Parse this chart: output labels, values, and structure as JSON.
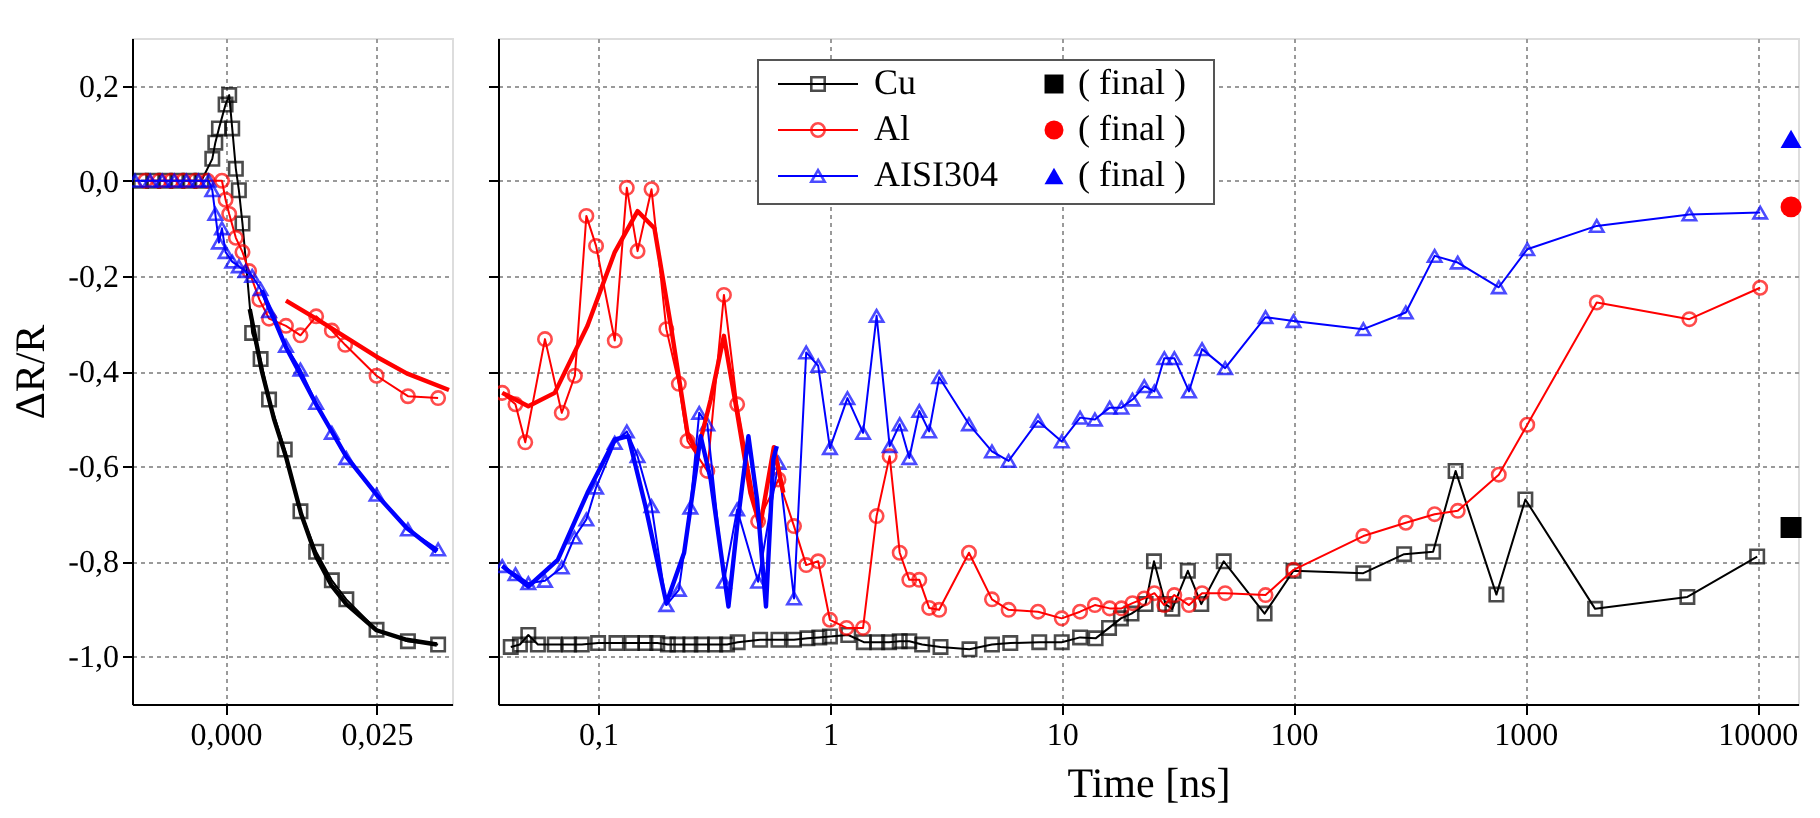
{
  "chart_data": [
    {
      "type": "line",
      "ylabel": "ΔR/R",
      "xlim": [
        -0.0155,
        0.0375
      ],
      "ylim": [
        -1.1,
        0.3
      ],
      "xticks": [
        {
          "value": 0,
          "label": "0,000"
        },
        {
          "value": 0.025,
          "label": "0,025"
        }
      ],
      "yticks": [
        {
          "value": 0.2,
          "label": "0,2"
        },
        {
          "value": 0,
          "label": "0,0"
        },
        {
          "value": -0.2,
          "label": "-0,2"
        },
        {
          "value": -0.4,
          "label": "-0,4"
        },
        {
          "value": -0.6,
          "label": "-0,6"
        },
        {
          "value": -0.8,
          "label": "-0,8"
        },
        {
          "value": -1.0,
          "label": "-1,0"
        }
      ],
      "grid": true,
      "series": [
        {
          "type": "line",
          "color": "#000000",
          "marker": "square",
          "x": [
            -0.014,
            -0.012,
            -0.01,
            -0.008,
            -0.006,
            -0.004,
            -0.0022,
            -0.0017,
            -0.0011,
            0.0,
            0.0006,
            0.0011,
            0.0017,
            0.0022,
            0.0028,
            0.0044,
            0.0058,
            0.0072,
            0.0098,
            0.0124,
            0.015,
            0.0176,
            0.02,
            0.025,
            0.0302,
            0.0352
          ],
          "values": [
            0.0,
            0.0,
            0.0,
            0.0,
            0.0,
            0.0,
            0.046,
            0.08,
            0.11,
            0.16,
            0.18,
            0.11,
            0.025,
            -0.02,
            -0.09,
            -0.32,
            -0.375,
            -0.46,
            -0.565,
            -0.695,
            -0.78,
            -0.84,
            -0.88,
            -0.944,
            -0.968,
            -0.975
          ]
        },
        {
          "type": "line",
          "color": "#ff0000",
          "marker": "circle",
          "x": [
            -0.0133,
            -0.011,
            -0.009,
            -0.007,
            -0.005,
            -0.003,
            -0.0006,
            0.0,
            0.0006,
            0.0017,
            0.0028,
            0.0039,
            0.0056,
            0.0072,
            0.01,
            0.0124,
            0.015,
            0.0176,
            0.0198,
            0.025,
            0.0302,
            0.0352
          ],
          "values": [
            0.0,
            0.0,
            0.0,
            0.0,
            0.0,
            0.0,
            0.0,
            -0.04,
            -0.07,
            -0.12,
            -0.15,
            -0.19,
            -0.25,
            -0.29,
            -0.305,
            -0.325,
            -0.285,
            -0.315,
            -0.345,
            -0.41,
            -0.453,
            -0.457
          ]
        },
        {
          "type": "line",
          "color": "#0000ff",
          "marker": "triangle",
          "x": [
            -0.015,
            -0.0125,
            -0.0105,
            -0.0085,
            -0.0065,
            -0.0045,
            -0.0028,
            -0.0022,
            -0.0017,
            -0.0011,
            -0.0006,
            0.0,
            0.0011,
            0.0022,
            0.0033,
            0.0044,
            0.0058,
            0.0072,
            0.01,
            0.0124,
            0.015,
            0.0176,
            0.02,
            0.025,
            0.0302,
            0.0352
          ],
          "values": [
            0.0,
            0.0,
            0.0,
            0.0,
            0.0,
            0.0,
            0.0,
            -0.02,
            -0.07,
            -0.13,
            -0.1,
            -0.15,
            -0.17,
            -0.18,
            -0.19,
            -0.2,
            -0.228,
            -0.274,
            -0.347,
            -0.397,
            -0.467,
            -0.53,
            -0.583,
            -0.66,
            -0.733,
            -0.775
          ]
        },
        {
          "type": "line",
          "color": "#000000",
          "marker": "none",
          "x": [
            0.004,
            0.006,
            0.008,
            0.01,
            0.0125,
            0.015,
            0.0175,
            0.02,
            0.025,
            0.03,
            0.035
          ],
          "values": [
            -0.27,
            -0.4,
            -0.5,
            -0.58,
            -0.7,
            -0.79,
            -0.85,
            -0.89,
            -0.945,
            -0.965,
            -0.975
          ]
        },
        {
          "type": "line",
          "color": "#ff0000",
          "marker": "none",
          "x": [
            0.01,
            0.015,
            0.02,
            0.025,
            0.03,
            0.037
          ],
          "values": [
            -0.252,
            -0.29,
            -0.33,
            -0.37,
            -0.405,
            -0.44
          ]
        },
        {
          "type": "line",
          "color": "#0000ff",
          "marker": "none",
          "x": [
            0.006,
            0.01,
            0.015,
            0.02,
            0.025,
            0.03,
            0.035
          ],
          "values": [
            -0.23,
            -0.35,
            -0.47,
            -0.58,
            -0.66,
            -0.73,
            -0.78
          ]
        }
      ]
    },
    {
      "type": "line",
      "xlabel": "Time [ns]",
      "log": "x",
      "xlim": [
        0.037,
        15000
      ],
      "ylim": [
        -1.1,
        0.3
      ],
      "xticks": [
        {
          "value": 0.1,
          "label": "0,1"
        },
        1,
        10,
        100,
        1000,
        10000
      ],
      "yticks": [
        {
          "value": 0.2,
          "label": null
        },
        {
          "value": 0,
          "label": null
        },
        {
          "value": -0.2,
          "label": null
        },
        {
          "value": -0.4,
          "label": null
        },
        {
          "value": -0.6,
          "label": null
        },
        {
          "value": -0.8,
          "label": null
        },
        {
          "value": -1.0,
          "label": null
        }
      ],
      "tick_labels": "x",
      "grid": true,
      "legend": "top",
      "series": [
        {
          "type": "line",
          "name": "Cu",
          "color": "#000000",
          "marker": "square",
          "x": [
            0.042,
            0.046,
            0.05,
            0.055,
            0.065,
            0.075,
            0.085,
            0.1,
            0.12,
            0.14,
            0.16,
            0.18,
            0.2,
            0.22,
            0.25,
            0.28,
            0.32,
            0.36,
            0.4,
            0.5,
            0.6,
            0.7,
            0.8,
            0.9,
            1,
            1.2,
            1.4,
            1.6,
            1.8,
            2,
            2.2,
            2.5,
            3,
            4,
            5,
            6,
            8,
            10,
            12,
            14,
            16,
            18,
            20,
            23,
            25,
            28,
            30,
            35,
            40,
            50,
            75,
            100,
            200,
            300,
            400,
            500,
            750,
            1000,
            2000,
            5000,
            10000
          ],
          "values": [
            -0.98,
            -0.975,
            -0.955,
            -0.975,
            -0.975,
            -0.975,
            -0.975,
            -0.972,
            -0.972,
            -0.972,
            -0.972,
            -0.972,
            -0.975,
            -0.975,
            -0.975,
            -0.975,
            -0.975,
            -0.975,
            -0.97,
            -0.965,
            -0.965,
            -0.965,
            -0.962,
            -0.96,
            -0.958,
            -0.955,
            -0.97,
            -0.97,
            -0.97,
            -0.968,
            -0.968,
            -0.975,
            -0.98,
            -0.985,
            -0.975,
            -0.972,
            -0.97,
            -0.97,
            -0.96,
            -0.962,
            -0.94,
            -0.92,
            -0.91,
            -0.89,
            -0.8,
            -0.89,
            -0.9,
            -0.82,
            -0.89,
            -0.8,
            -0.91,
            -0.82,
            -0.825,
            -0.785,
            -0.78,
            -0.61,
            -0.87,
            -0.67,
            -0.9,
            -0.875,
            -0.79
          ]
        },
        {
          "type": "line",
          "name": "Al",
          "color": "#ff0000",
          "marker": "circle",
          "x": [
            0.0386,
            0.044,
            0.0485,
            0.059,
            0.0697,
            0.0794,
            0.089,
            0.098,
            0.118,
            0.133,
            0.148,
            0.17,
            0.197,
            0.223,
            0.243,
            0.296,
            0.349,
            0.398,
            0.49,
            0.6,
            0.7,
            0.79,
            0.89,
            1.0,
            1.18,
            1.39,
            1.59,
            1.81,
            2.0,
            2.2,
            2.43,
            2.68,
            2.96,
            3.98,
            5.0,
            5.9,
            7.9,
            10,
            12,
            13.9,
            16.1,
            18.1,
            20.2,
            22.7,
            25.1,
            27.7,
            30.6,
            35.4,
            40.3,
            50.7,
            75.7,
            100,
            200,
            305,
            406,
            511,
            768,
            1019,
            2032,
            5100,
            10300
          ],
          "values": [
            -0.446,
            -0.47,
            -0.55,
            -0.333,
            -0.488,
            -0.41,
            -0.074,
            -0.137,
            -0.336,
            -0.015,
            -0.148,
            -0.018,
            -0.312,
            -0.427,
            -0.547,
            -0.61,
            -0.24,
            -0.47,
            -0.716,
            -0.628,
            -0.726,
            -0.808,
            -0.8,
            -0.923,
            -0.94,
            -0.94,
            -0.705,
            -0.579,
            -0.782,
            -0.839,
            -0.839,
            -0.898,
            -0.902,
            -0.782,
            -0.88,
            -0.902,
            -0.906,
            -0.92,
            -0.906,
            -0.892,
            -0.899,
            -0.899,
            -0.888,
            -0.878,
            -0.867,
            -0.892,
            -0.871,
            -0.892,
            -0.867,
            -0.867,
            -0.871,
            -0.818,
            -0.747,
            -0.719,
            -0.701,
            -0.694,
            -0.618,
            -0.513,
            -0.256,
            -0.291,
            -0.225
          ]
        },
        {
          "type": "line",
          "name": "AISI304",
          "color": "#0000ff",
          "marker": "triangle",
          "x": [
            0.0386,
            0.044,
            0.05,
            0.059,
            0.0697,
            0.079,
            0.089,
            0.098,
            0.118,
            0.133,
            0.148,
            0.17,
            0.197,
            0.223,
            0.25,
            0.273,
            0.296,
            0.349,
            0.398,
            0.49,
            0.6,
            0.7,
            0.79,
            0.89,
            1.0,
            1.19,
            1.39,
            1.59,
            1.81,
            2.0,
            2.2,
            2.43,
            2.68,
            2.96,
            3.98,
            5.0,
            5.9,
            7.9,
            10,
            12,
            13.9,
            16.1,
            18.1,
            20.2,
            22.7,
            25.1,
            27.7,
            30.6,
            35.4,
            40.3,
            50.7,
            75.7,
            100,
            200,
            305,
            406,
            511,
            768,
            1019,
            2032,
            5100,
            10300
          ],
          "values": [
            -0.81,
            -0.827,
            -0.846,
            -0.841,
            -0.813,
            -0.75,
            -0.712,
            -0.645,
            -0.551,
            -0.527,
            -0.579,
            -0.684,
            -0.892,
            -0.86,
            -0.687,
            -0.488,
            -0.512,
            -0.843,
            -0.691,
            -0.843,
            -0.593,
            -0.878,
            -0.361,
            -0.389,
            -0.562,
            -0.457,
            -0.53,
            -0.284,
            -0.558,
            -0.512,
            -0.583,
            -0.484,
            -0.527,
            -0.413,
            -0.512,
            -0.569,
            -0.589,
            -0.505,
            -0.548,
            -0.498,
            -0.502,
            -0.477,
            -0.477,
            -0.46,
            -0.432,
            -0.443,
            -0.373,
            -0.373,
            -0.443,
            -0.354,
            -0.394,
            -0.287,
            -0.295,
            -0.312,
            -0.277,
            -0.158,
            -0.172,
            -0.224,
            -0.144,
            -0.095,
            -0.071,
            -0.067
          ]
        },
        {
          "type": "line",
          "color": "#ff0000",
          "marker": "none",
          "x": [
            0.0386,
            0.05,
            0.065,
            0.09,
            0.118,
            0.148,
            0.175,
            0.206,
            0.243,
            0.268,
            0.306,
            0.349,
            0.398,
            0.454,
            0.5,
            0.573,
            0.63
          ],
          "values": [
            -0.446,
            -0.474,
            -0.446,
            -0.305,
            -0.15,
            -0.064,
            -0.1,
            -0.305,
            -0.53,
            -0.572,
            -0.46,
            -0.326,
            -0.488,
            -0.656,
            -0.726,
            -0.56,
            -0.656
          ]
        },
        {
          "type": "line",
          "color": "#0000ff",
          "marker": "none",
          "x": [
            0.0386,
            0.05,
            0.067,
            0.09,
            0.118,
            0.135,
            0.16,
            0.197,
            0.235,
            0.277,
            0.306,
            0.365,
            0.398,
            0.445,
            0.485,
            0.53,
            0.57,
            0.59
          ],
          "values": [
            -0.81,
            -0.853,
            -0.797,
            -0.656,
            -0.544,
            -0.537,
            -0.684,
            -0.888,
            -0.782,
            -0.537,
            -0.628,
            -0.895,
            -0.726,
            -0.537,
            -0.67,
            -0.895,
            -0.586,
            -0.558
          ]
        },
        {
          "type": "scatter",
          "name": "( final )",
          "color": "#000000",
          "marker": "square",
          "x": [
            14000
          ],
          "values": [
            -0.729
          ]
        },
        {
          "type": "scatter",
          "name": "( final )",
          "color": "#ff0000",
          "marker": "circle",
          "x": [
            14000
          ],
          "values": [
            -0.055
          ]
        },
        {
          "type": "scatter",
          "name": "( final )",
          "color": "#0000ff",
          "marker": "triangle",
          "x": [
            14000
          ],
          "values": [
            0.088
          ]
        }
      ]
    }
  ]
}
